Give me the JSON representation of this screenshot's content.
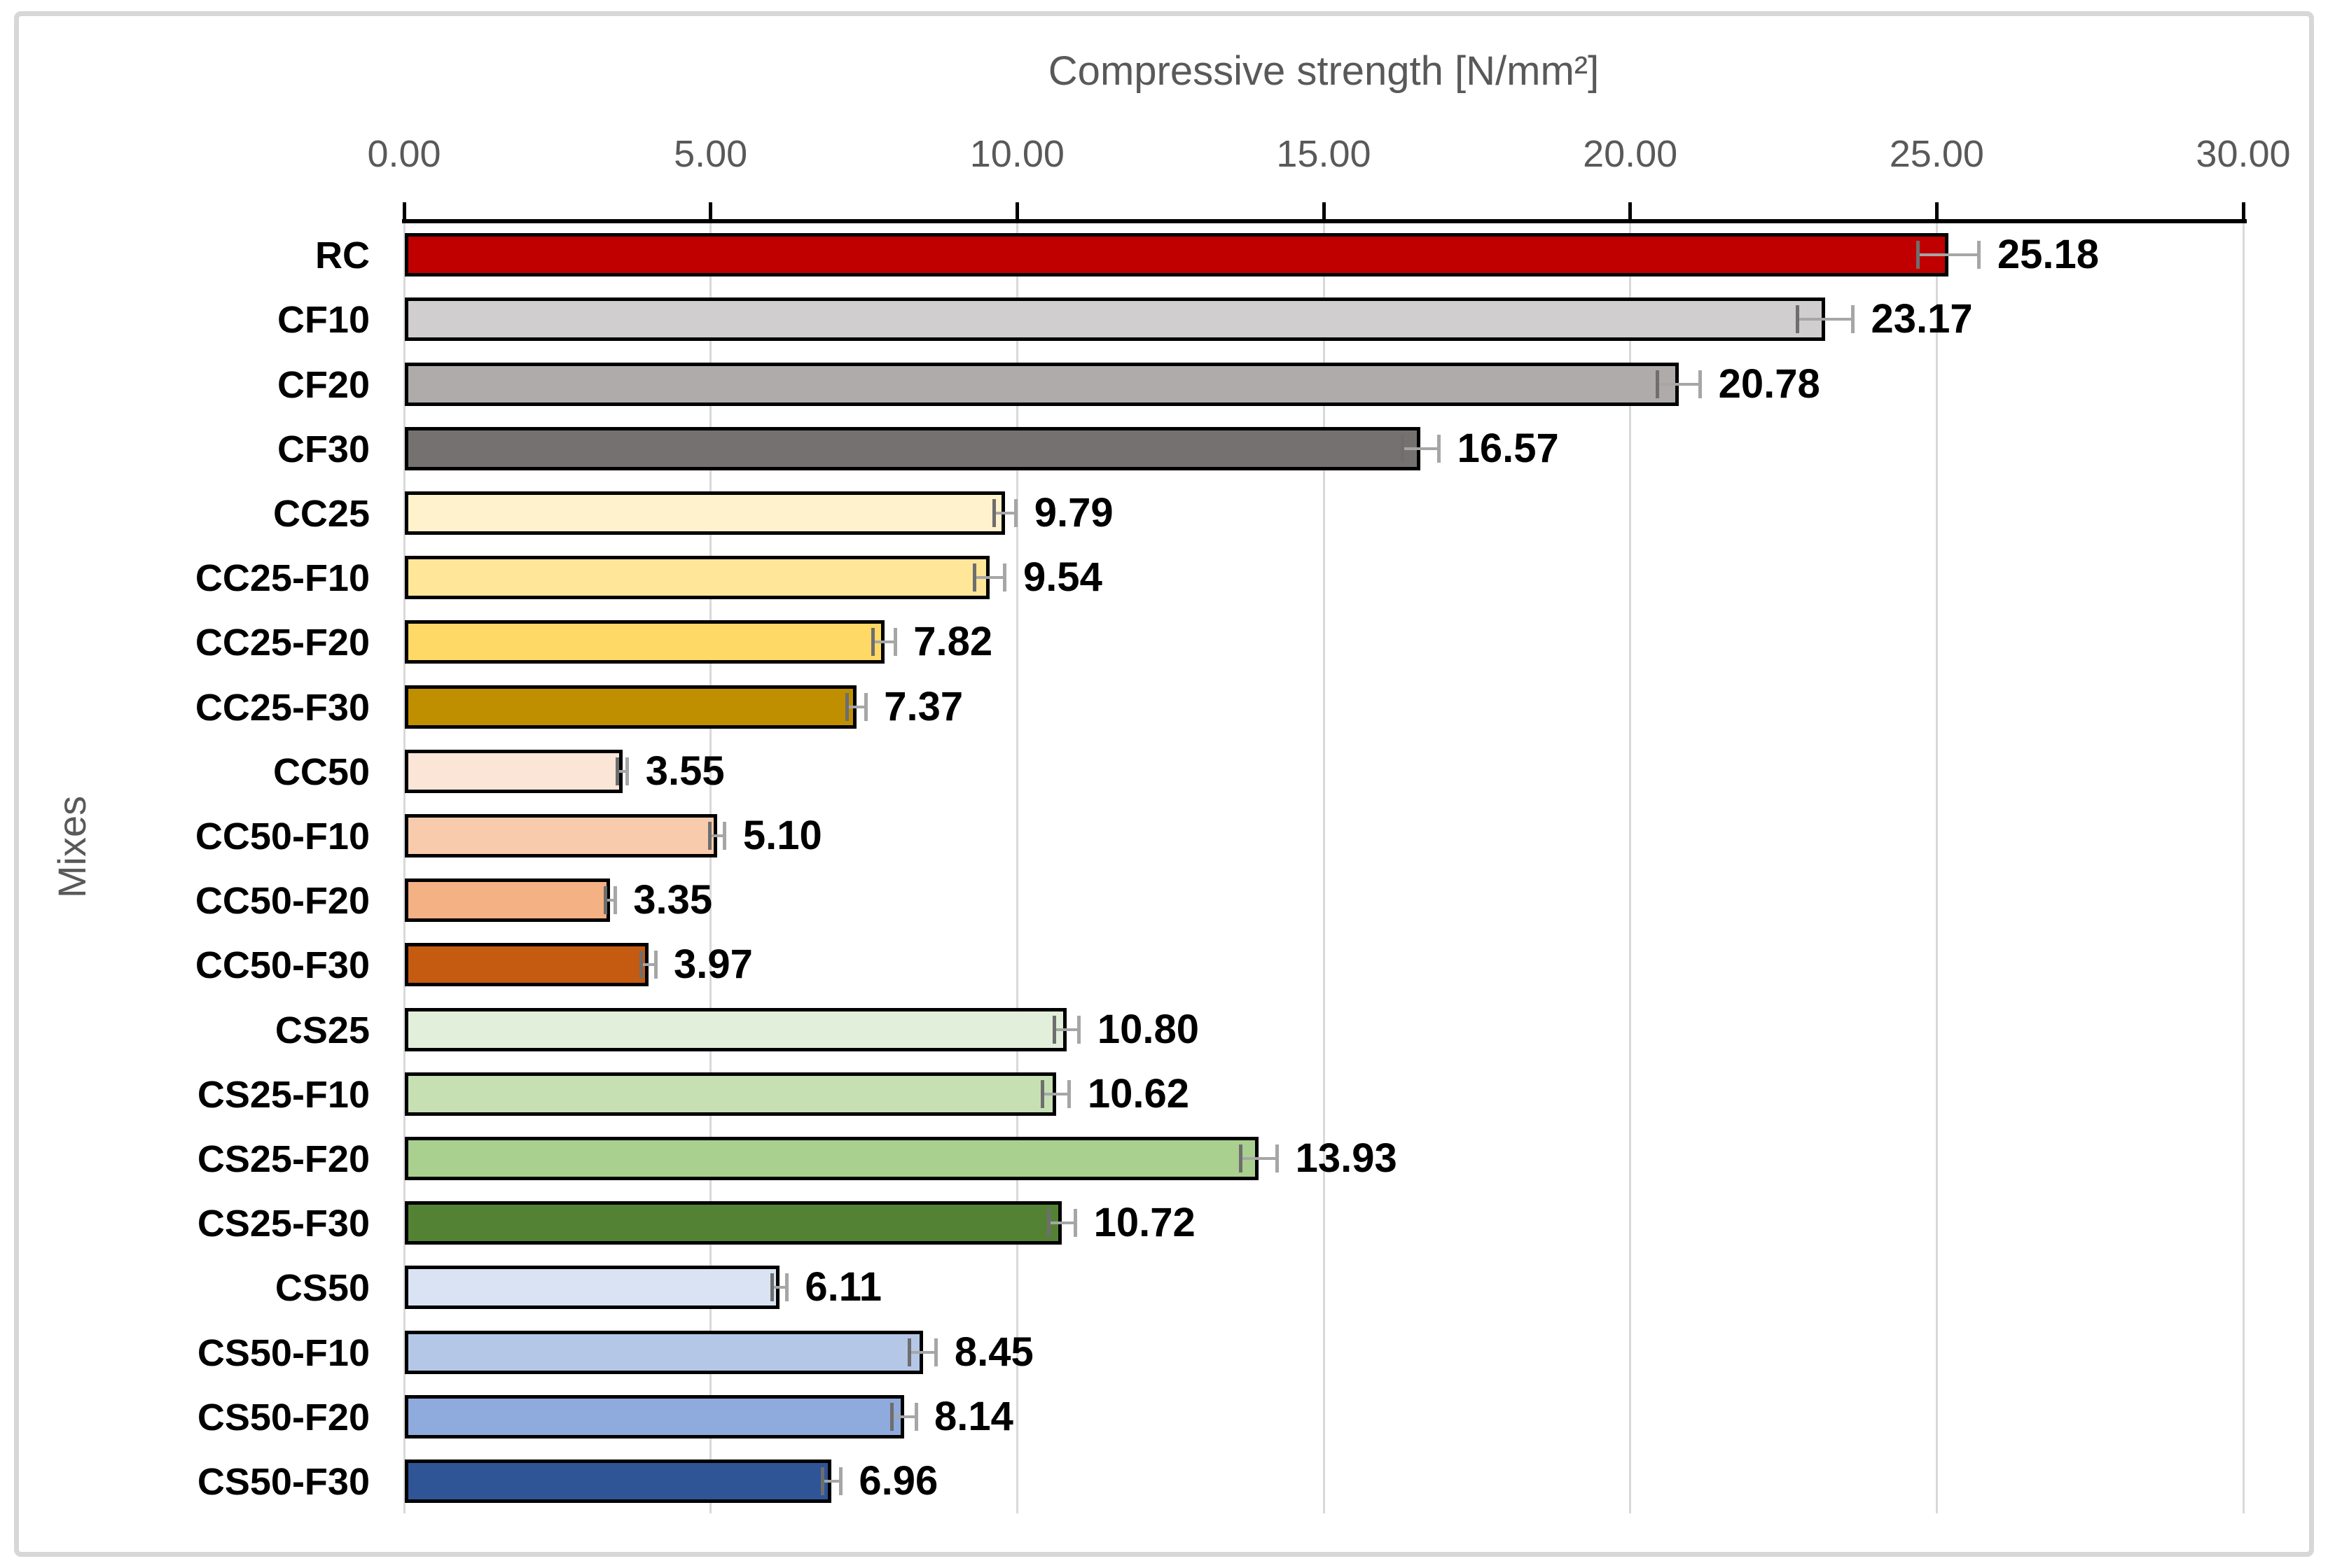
{
  "chart_data": {
    "type": "bar",
    "orientation": "horizontal",
    "title": "Compressive strength [N/mm²]",
    "xlabel": "Compressive strength [N/mm²]",
    "ylabel": "Mixes",
    "xlim": [
      0,
      30
    ],
    "x_tick_values": [
      0,
      5,
      10,
      15,
      20,
      25,
      30
    ],
    "x_tick_labels": [
      "0.00",
      "5.00",
      "10.00",
      "15.00",
      "20.00",
      "25.00",
      "30.00"
    ],
    "grid": true,
    "legend": false,
    "categories": [
      "RC",
      "CF10",
      "CF20",
      "CF30",
      "CC25",
      "CC25-F10",
      "CC25-F20",
      "CC25-F30",
      "CC50",
      "CC50-F10",
      "CC50-F20",
      "CC50-F30",
      "CS25",
      "CS25-F10",
      "CS25-F20",
      "CS25-F30",
      "CS50",
      "CS50-F10",
      "CS50-F20",
      "CS50-F30"
    ],
    "values": [
      25.18,
      23.17,
      20.78,
      16.57,
      9.79,
      9.54,
      7.82,
      7.37,
      3.55,
      5.1,
      3.35,
      3.97,
      10.8,
      10.62,
      13.93,
      10.72,
      6.11,
      8.45,
      8.14,
      6.96
    ],
    "value_labels": [
      "25.18",
      "23.17",
      "20.78",
      "16.57",
      "9.79",
      "9.54",
      "7.82",
      "7.37",
      "3.55",
      "5.10",
      "3.35",
      "3.97",
      "10.80",
      "10.62",
      "13.93",
      "10.72",
      "6.11",
      "8.45",
      "8.14",
      "6.96"
    ],
    "errors": [
      0.5,
      0.45,
      0.35,
      0.3,
      0.18,
      0.25,
      0.18,
      0.15,
      0.08,
      0.12,
      0.08,
      0.12,
      0.2,
      0.22,
      0.3,
      0.22,
      0.12,
      0.22,
      0.2,
      0.15
    ],
    "bar_colors": [
      "#C00000",
      "#D0CECE",
      "#AFABAB",
      "#767171",
      "#FFF2CC",
      "#FFE699",
      "#FFD966",
      "#BF8F00",
      "#FBE5D6",
      "#F8CBAD",
      "#F4B183",
      "#C55A11",
      "#E2EFDA",
      "#C6E0B4",
      "#A9D08E",
      "#548235",
      "#DAE3F3",
      "#B4C7E7",
      "#8FAADC",
      "#2F5597"
    ],
    "colors": {
      "bar_border": "#000000",
      "error_bar_line": "#A6A6A6",
      "error_cap_inner": "#6E6E6E",
      "error_cap_outer": "#A6A6A6",
      "gridline": "#D9D9D9",
      "axis_line": "#000000",
      "axis_text": "#595959",
      "value_label_text": "#000000",
      "category_label_text": "#000000",
      "frame_border": "#D7D7D7",
      "background": "#FFFFFF"
    }
  }
}
